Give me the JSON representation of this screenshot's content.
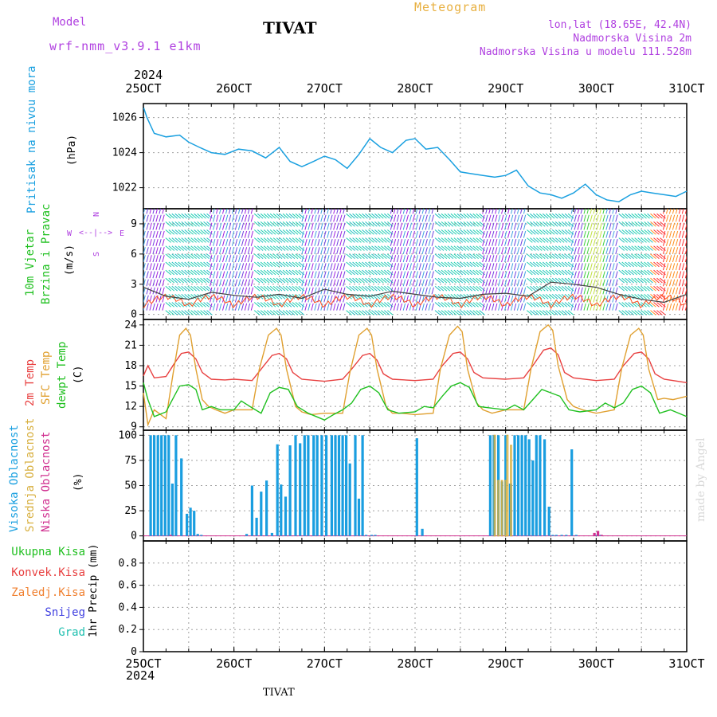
{
  "header": {
    "model_label": "Model",
    "model_name": "wrf-nmm_v3.9.1  e1km",
    "station": "TIVAT",
    "title": "Meteogram",
    "coords": "lon,lat (18.65E, 42.4N)",
    "elevation": "Nadmorska Visina 2m",
    "model_elevation": "Nadmorska Visina u modelu 111.528m",
    "watermark": "made by Angel",
    "footer_station": "TIVAT"
  },
  "time_axis": {
    "year": "2024",
    "labels": [
      "25OCT",
      "26OCT",
      "27OCT",
      "28OCT",
      "29OCT",
      "30OCT",
      "31OCT"
    ]
  },
  "colors": {
    "pressure": "#1aa0e0",
    "temp2m": "#e84040",
    "sfc_temp": "#e0a030",
    "dewpt": "#20c020",
    "high_cloud": "#1a9ee0",
    "mid_cloud": "#d8b040",
    "low_cloud": "#d03090"
  },
  "panels": {
    "pressure": {
      "label": "Pritisak na nivou mora",
      "unit": "(hPa)"
    },
    "wind": {
      "label1": "10m Vjetar",
      "label2": "Brzina i Pravac",
      "unit": "(m/s)",
      "compass_n": "N",
      "compass_s": "S",
      "compass_e": "E",
      "compass_w": "W"
    },
    "temp": {
      "label1": "2m Temp",
      "label2": "SFC Temp",
      "label3": "dewpt Temp",
      "unit": "(C)"
    },
    "cloud": {
      "label1": "Visoka Oblacnost",
      "label2": "Srednja Oblacnost",
      "label3": "Niska Oblacnost",
      "unit": "(%)"
    },
    "precip": {
      "legend": [
        "Ukupna Kisa",
        "Konvek.Kisa",
        "Zaledj.Kisa",
        "Snijeg",
        "Grad"
      ],
      "unit": "1hr Precip (mm)"
    }
  },
  "chart_data": [
    {
      "type": "line",
      "title": "Pritisak na nivou mora",
      "ylabel": "(hPa)",
      "x_unit": "days from 25OCT 00Z",
      "ylim": [
        1020.8,
        1026.8
      ],
      "yticks": [
        1022,
        1024,
        1026
      ],
      "series": [
        {
          "name": "Pritisak na nivou mora",
          "x": [
            0,
            0.04,
            0.12,
            0.25,
            0.4,
            0.5,
            0.62,
            0.75,
            0.9,
            1.05,
            1.2,
            1.35,
            1.5,
            1.62,
            1.75,
            1.88,
            2.0,
            2.12,
            2.25,
            2.38,
            2.5,
            2.62,
            2.75,
            2.9,
            3.0,
            3.12,
            3.25,
            3.38,
            3.5,
            3.62,
            3.75,
            3.88,
            4.0,
            4.12,
            4.25,
            4.38,
            4.5,
            4.62,
            4.75,
            4.88,
            5.0,
            5.12,
            5.25,
            5.38,
            5.5,
            5.62,
            5.75,
            5.88,
            6.0
          ],
          "values": [
            1026.6,
            1026.0,
            1025.1,
            1024.9,
            1025.0,
            1024.6,
            1024.3,
            1024.0,
            1023.9,
            1024.2,
            1024.1,
            1023.7,
            1024.3,
            1023.5,
            1023.2,
            1023.5,
            1023.8,
            1023.6,
            1023.1,
            1023.9,
            1024.8,
            1024.3,
            1024.0,
            1024.7,
            1024.8,
            1024.2,
            1024.3,
            1023.6,
            1022.9,
            1022.8,
            1022.7,
            1022.6,
            1022.7,
            1023.0,
            1022.1,
            1021.7,
            1021.6,
            1021.4,
            1021.7,
            1022.2,
            1021.6,
            1021.3,
            1021.2,
            1021.6,
            1021.8,
            1021.7,
            1021.6,
            1021.5,
            1021.8
          ]
        }
      ]
    },
    {
      "type": "line",
      "title": "10m Vjetar Brzina i Pravac",
      "ylabel": "(m/s)",
      "x_unit": "days from 25OCT 00Z",
      "ylim": [
        -0.5,
        10.5
      ],
      "yticks": [
        0,
        3,
        6,
        9
      ],
      "series": [
        {
          "name": "Brzina",
          "x": [
            0,
            0.25,
            0.5,
            0.75,
            1.0,
            1.25,
            1.5,
            1.75,
            2.0,
            2.25,
            2.5,
            2.75,
            3.0,
            3.25,
            3.5,
            3.75,
            4.0,
            4.25,
            4.5,
            4.75,
            5.0,
            5.25,
            5.5,
            5.75,
            6.0
          ],
          "values": [
            2.7,
            1.8,
            1.5,
            2.2,
            1.9,
            1.7,
            2.0,
            1.6,
            2.5,
            2.0,
            1.8,
            2.3,
            2.0,
            1.7,
            1.6,
            2.0,
            2.1,
            1.8,
            3.2,
            3.0,
            2.7,
            2.0,
            1.5,
            1.2,
            2.0
          ]
        }
      ]
    },
    {
      "type": "line",
      "title": "2m Temp / SFC Temp / dewpt Temp",
      "ylabel": "(C)",
      "x_unit": "days from 25OCT 00Z",
      "ylim": [
        8.5,
        24.8
      ],
      "yticks": [
        9,
        12,
        15,
        18,
        21,
        24
      ],
      "series": [
        {
          "name": "2m Temp",
          "x": [
            0,
            0.05,
            0.12,
            0.25,
            0.35,
            0.42,
            0.5,
            0.58,
            0.65,
            0.75,
            0.9,
            1.0,
            1.2,
            1.3,
            1.42,
            1.5,
            1.58,
            1.65,
            1.75,
            2.0,
            2.2,
            2.3,
            2.42,
            2.5,
            2.58,
            2.65,
            2.75,
            3.0,
            3.2,
            3.3,
            3.42,
            3.5,
            3.58,
            3.65,
            3.75,
            4.0,
            4.2,
            4.3,
            4.42,
            4.5,
            4.58,
            4.65,
            4.75,
            5.0,
            5.2,
            5.3,
            5.42,
            5.5,
            5.58,
            5.65,
            5.75,
            6.0
          ],
          "values": [
            16.5,
            18.0,
            16.2,
            16.4,
            18.5,
            19.8,
            20.0,
            19.0,
            17.0,
            16.0,
            15.9,
            16.0,
            15.8,
            17.5,
            19.5,
            19.8,
            19.0,
            17.0,
            16.0,
            15.7,
            16.0,
            17.5,
            19.5,
            19.8,
            18.8,
            16.8,
            16.0,
            15.8,
            16.0,
            18.0,
            19.8,
            20.0,
            19.0,
            17.0,
            16.2,
            16.0,
            16.2,
            18.0,
            20.3,
            20.6,
            19.6,
            17.0,
            16.2,
            15.8,
            16.0,
            18.0,
            19.8,
            20.0,
            19.0,
            16.8,
            16.0,
            15.5
          ]
        },
        {
          "name": "SFC Temp",
          "x": [
            0,
            0.05,
            0.12,
            0.25,
            0.33,
            0.4,
            0.47,
            0.52,
            0.58,
            0.65,
            0.72,
            0.8,
            0.9,
            1.0,
            1.2,
            1.28,
            1.38,
            1.47,
            1.52,
            1.58,
            1.68,
            1.75,
            1.85,
            2.0,
            2.2,
            2.28,
            2.38,
            2.47,
            2.52,
            2.58,
            2.68,
            2.75,
            2.85,
            3.0,
            3.2,
            3.28,
            3.38,
            3.47,
            3.52,
            3.58,
            3.68,
            3.75,
            3.85,
            4.0,
            4.2,
            4.28,
            4.38,
            4.47,
            4.52,
            4.58,
            4.68,
            4.75,
            4.85,
            5.0,
            5.2,
            5.28,
            5.38,
            5.47,
            5.52,
            5.58,
            5.68,
            5.75,
            5.85,
            6.0
          ],
          "values": [
            14.0,
            9.3,
            11.5,
            10.2,
            17.0,
            22.5,
            23.5,
            22.5,
            17.5,
            13.0,
            12.0,
            11.5,
            11.0,
            11.5,
            11.5,
            17.5,
            22.5,
            23.5,
            22.5,
            17.5,
            12.0,
            11.2,
            10.8,
            11.0,
            11.0,
            17.0,
            22.5,
            23.5,
            22.5,
            17.5,
            12.0,
            11.0,
            11.0,
            10.8,
            11.0,
            17.5,
            22.5,
            23.8,
            23.0,
            17.5,
            12.5,
            11.5,
            11.0,
            11.5,
            11.5,
            17.5,
            23.0,
            24.0,
            23.2,
            18.0,
            13.0,
            12.0,
            11.5,
            11.0,
            11.5,
            17.5,
            22.5,
            23.5,
            22.5,
            17.5,
            13.0,
            13.2,
            13.0,
            13.5
          ]
        },
        {
          "name": "dewpt Temp",
          "x": [
            0,
            0.05,
            0.12,
            0.25,
            0.3,
            0.4,
            0.5,
            0.58,
            0.65,
            0.75,
            0.85,
            1.0,
            1.08,
            1.2,
            1.3,
            1.4,
            1.5,
            1.6,
            1.7,
            1.82,
            2.0,
            2.1,
            2.2,
            2.3,
            2.4,
            2.5,
            2.6,
            2.7,
            2.82,
            3.0,
            3.1,
            3.2,
            3.3,
            3.4,
            3.5,
            3.6,
            3.7,
            3.82,
            4.0,
            4.1,
            4.2,
            4.3,
            4.4,
            4.5,
            4.6,
            4.7,
            4.82,
            5.0,
            5.1,
            5.2,
            5.3,
            5.4,
            5.5,
            5.6,
            5.7,
            5.82,
            6.0
          ],
          "values": [
            15.5,
            13.0,
            10.5,
            11.2,
            12.5,
            15.0,
            15.2,
            14.5,
            11.5,
            12.0,
            11.5,
            11.5,
            12.8,
            11.8,
            11.0,
            14.0,
            14.8,
            14.5,
            12.0,
            11.0,
            10.0,
            10.8,
            11.5,
            12.5,
            14.5,
            15.0,
            14.0,
            11.5,
            11.0,
            11.2,
            12.0,
            11.8,
            13.5,
            15.0,
            15.5,
            14.8,
            12.0,
            11.8,
            11.5,
            12.2,
            11.5,
            13.0,
            14.5,
            14.0,
            13.5,
            11.5,
            11.2,
            11.5,
            12.5,
            11.8,
            12.5,
            14.5,
            15.0,
            14.0,
            11.0,
            11.5,
            10.5
          ]
        }
      ]
    },
    {
      "type": "bar",
      "title": "Visoka / Srednja / Niska Oblacnost",
      "ylabel": "(%)",
      "x_unit": "days from 25OCT 00Z",
      "ylim": [
        -5,
        105
      ],
      "yticks": [
        0,
        25,
        50,
        75,
        100
      ],
      "series": [
        {
          "name": "Visoka Oblacnost",
          "x": [
            0.08,
            0.12,
            0.16,
            0.2,
            0.24,
            0.28,
            0.32,
            0.36,
            0.42,
            0.48,
            0.52,
            0.56,
            0.6,
            0.64,
            1.14,
            1.2,
            1.25,
            1.3,
            1.36,
            1.42,
            1.48,
            1.52,
            1.57,
            1.62,
            1.68,
            1.73,
            1.78,
            1.82,
            1.88,
            1.92,
            1.97,
            2.02,
            2.08,
            2.12,
            2.16,
            2.2,
            2.24,
            2.28,
            2.34,
            2.38,
            2.42,
            2.46,
            2.52,
            2.56,
            3.02,
            3.08,
            3.83,
            3.87,
            3.92,
            3.96,
            4.0,
            4.05,
            4.1,
            4.14,
            4.18,
            4.22,
            4.26,
            4.3,
            4.34,
            4.38,
            4.43,
            4.48,
            4.52,
            4.56,
            4.62,
            4.67,
            4.73,
            4.78,
            5.0,
            5.05
          ],
          "values": [
            100,
            100,
            100,
            100,
            100,
            100,
            52,
            100,
            77,
            22,
            28,
            25,
            2,
            1,
            2,
            50,
            18,
            44,
            55,
            3,
            91,
            51,
            39,
            90,
            100,
            92,
            100,
            100,
            100,
            100,
            100,
            100,
            100,
            100,
            100,
            100,
            100,
            72,
            100,
            37,
            100,
            1,
            1,
            1,
            97,
            7,
            100,
            100,
            100,
            54,
            100,
            52,
            100,
            100,
            100,
            100,
            96,
            75,
            100,
            100,
            96,
            29,
            1,
            1,
            1,
            1,
            86,
            1,
            1,
            1
          ]
        },
        {
          "name": "Srednja Oblacnost",
          "x": [
            3.88,
            3.92,
            3.96,
            4.0,
            4.02,
            4.06
          ],
          "values": [
            100,
            55,
            55,
            55,
            100,
            90
          ]
        },
        {
          "name": "Niska Oblacnost",
          "x": [
            0.3,
            4.98,
            5.02,
            5.06
          ],
          "values": [
            1,
            3,
            5,
            1
          ]
        }
      ]
    },
    {
      "type": "bar",
      "title": "1hr Precip",
      "ylabel": "1hr Precip (mm)",
      "x_unit": "days from 25OCT 00Z",
      "ylim": [
        0,
        1.0
      ],
      "yticks": [
        0,
        0.2,
        0.4,
        0.6,
        0.8
      ],
      "series": [
        {
          "name": "Ukupna Kisa",
          "values": []
        },
        {
          "name": "Konvek.Kisa",
          "values": []
        },
        {
          "name": "Zaledj.Kisa",
          "values": []
        },
        {
          "name": "Snijeg",
          "values": []
        },
        {
          "name": "Grad",
          "values": []
        }
      ]
    }
  ]
}
